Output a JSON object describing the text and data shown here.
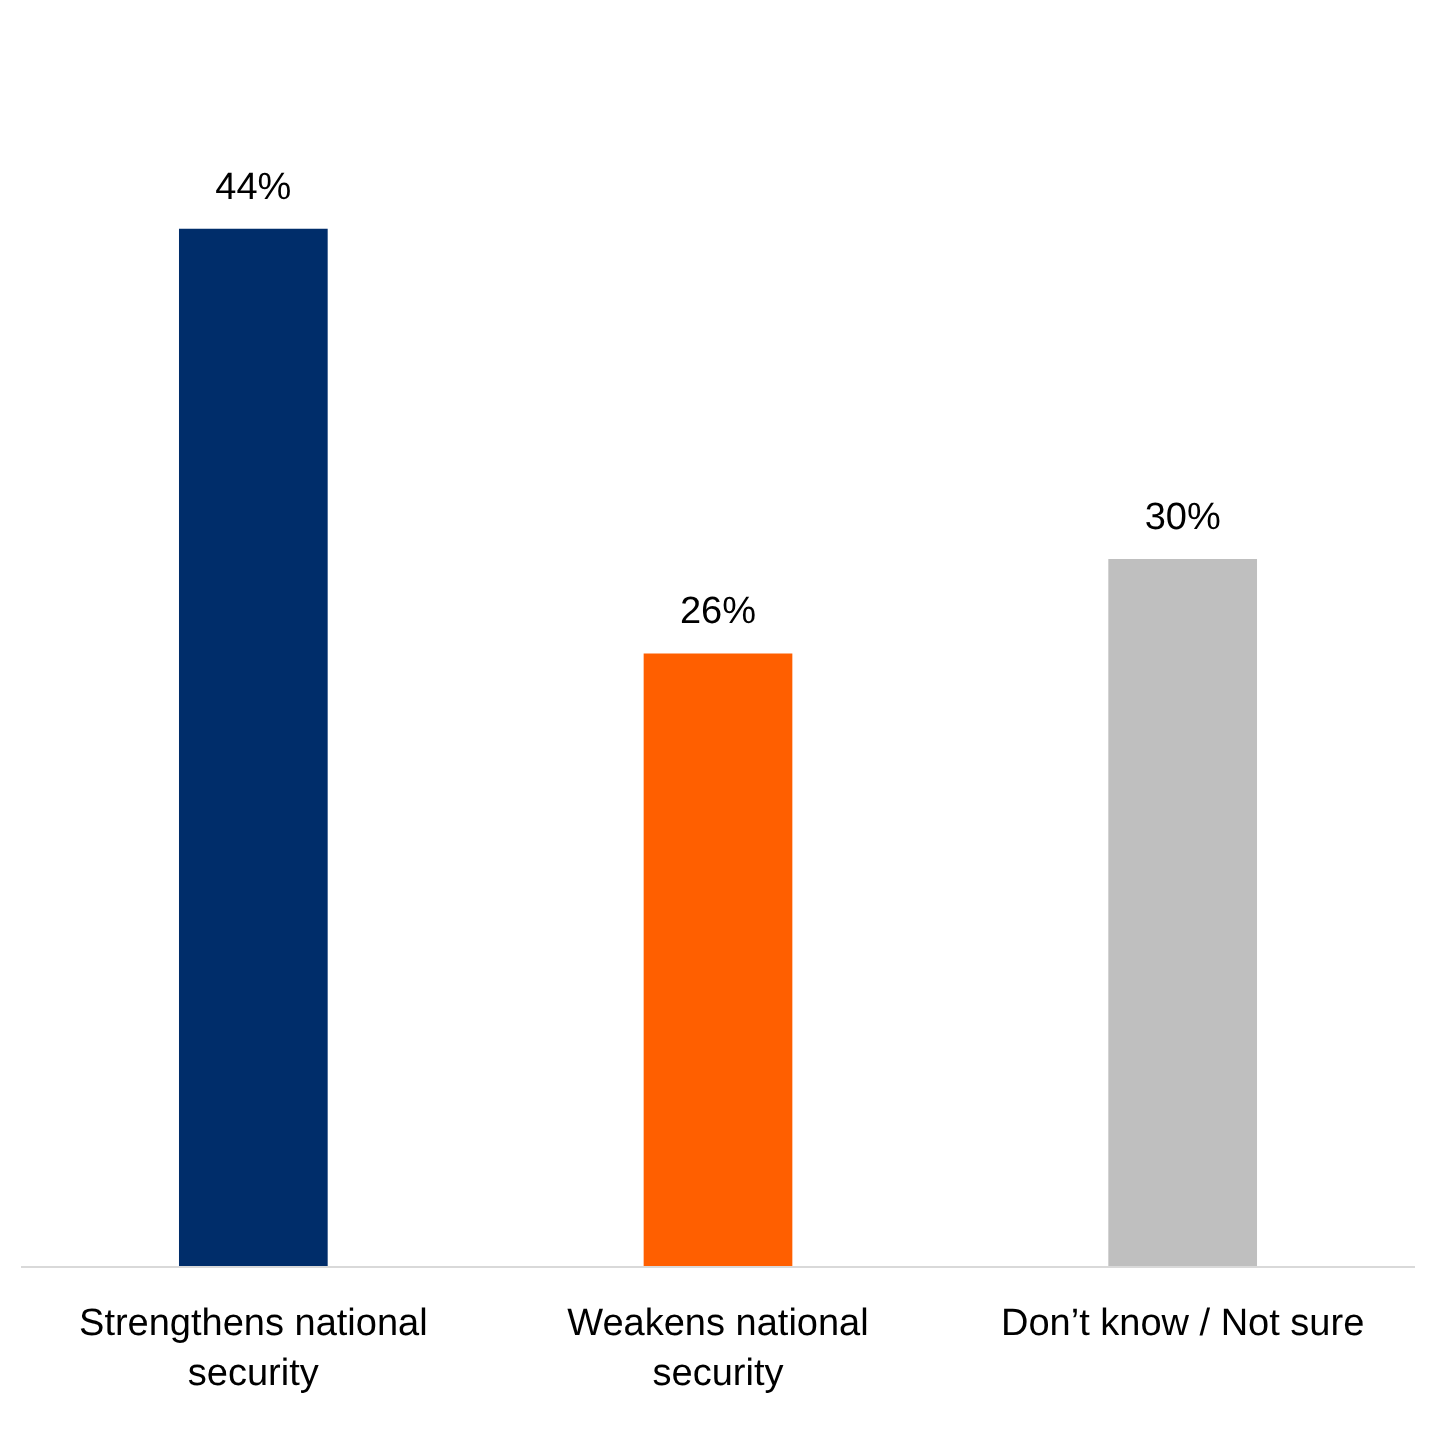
{
  "chart_data": {
    "type": "bar",
    "categories": [
      "Strengthens national security",
      "Weakens national security",
      "Don’t know / Not sure"
    ],
    "values": [
      44,
      26,
      30
    ],
    "colors": [
      "#002d6a",
      "#ff5f00",
      "#bfbfbf"
    ],
    "value_labels": [
      "44%",
      "26%",
      "30%"
    ],
    "grid": false
  }
}
